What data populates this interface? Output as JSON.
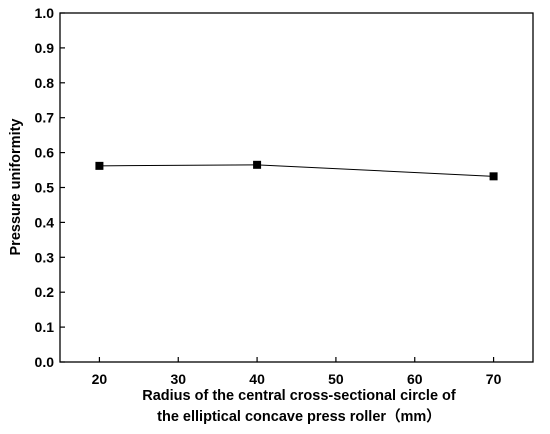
{
  "chart_data": {
    "type": "line",
    "title": "",
    "xlabel": "Radius of the central cross-sectional circle of",
    "xlabel_line2": "the elliptical concave press roller（mm）",
    "ylabel": "Pressure uniformity",
    "x": [
      20,
      40,
      70
    ],
    "series": [
      {
        "values": [
          0.562,
          0.565,
          0.532
        ]
      }
    ],
    "xlim": [
      15,
      75
    ],
    "ylim": [
      0.0,
      1.0
    ],
    "xticks": [
      20,
      30,
      40,
      50,
      60,
      70
    ],
    "yticks": [
      0.0,
      0.1,
      0.2,
      0.3,
      0.4,
      0.5,
      0.6,
      0.7,
      0.8,
      0.9,
      1.0
    ],
    "xtick_labels": [
      "20",
      "30",
      "40",
      "50",
      "60",
      "70"
    ],
    "ytick_labels": [
      "0.0",
      "0.1",
      "0.2",
      "0.3",
      "0.4",
      "0.5",
      "0.6",
      "0.7",
      "0.8",
      "0.9",
      "1.0"
    ],
    "marker": "square",
    "line_color": "#000000",
    "marker_color": "#000000",
    "grid": false,
    "legend": "none"
  }
}
